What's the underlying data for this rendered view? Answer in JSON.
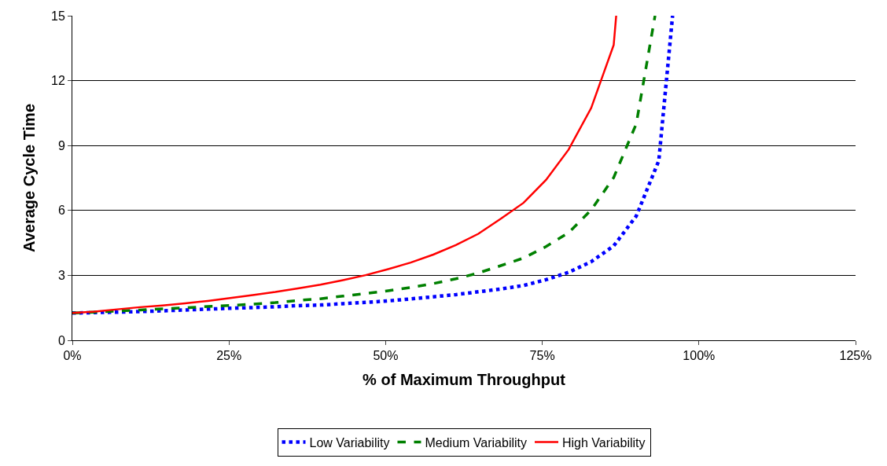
{
  "chart_data": {
    "type": "line",
    "xlabel": "% of Maximum Throughput",
    "ylabel": "Average Cycle Time",
    "xlim": [
      0,
      125
    ],
    "xticks": [
      {
        "value": 0,
        "label": "0%"
      },
      {
        "value": 25,
        "label": "25%"
      },
      {
        "value": 50,
        "label": "50%"
      },
      {
        "value": 75,
        "label": "75%"
      },
      {
        "value": 100,
        "label": "100%"
      },
      {
        "value": 125,
        "label": "125%"
      }
    ],
    "ylim": [
      0,
      15
    ],
    "yticks": [
      0,
      3,
      6,
      9,
      12,
      15
    ],
    "grid": "y",
    "legend": "bottom",
    "series": [
      {
        "name": "Low Variability",
        "color": "#0000ff",
        "line_style": "dotted",
        "x": [
          0,
          3.6,
          7.2,
          10.8,
          14.4,
          18,
          21.6,
          25.2,
          28.8,
          32.4,
          36,
          39.6,
          43.2,
          46.8,
          50.4,
          54,
          57.6,
          61.2,
          64.8,
          68.4,
          72,
          75.6,
          79.2,
          82.8,
          86.4,
          90,
          93.6,
          95.8
        ],
        "values": [
          1.26,
          1.28,
          1.3,
          1.33,
          1.36,
          1.4,
          1.44,
          1.48,
          1.51,
          1.55,
          1.6,
          1.63,
          1.69,
          1.75,
          1.82,
          1.91,
          2.01,
          2.11,
          2.24,
          2.37,
          2.53,
          2.8,
          3.14,
          3.63,
          4.36,
          5.74,
          8.3,
          15
        ]
      },
      {
        "name": "Medium Variability",
        "color": "#008000",
        "line_style": "dashed",
        "x": [
          0,
          3.6,
          7.2,
          10.8,
          14.4,
          18,
          21.6,
          25.2,
          28.8,
          32.4,
          36,
          39.6,
          43.2,
          46.8,
          50.4,
          54,
          57.6,
          61.2,
          64.8,
          68.4,
          72,
          75.6,
          79.2,
          82.8,
          86.4,
          90,
          93
        ],
        "values": [
          1.26,
          1.3,
          1.35,
          1.4,
          1.45,
          1.5,
          1.56,
          1.61,
          1.67,
          1.74,
          1.84,
          1.92,
          2.04,
          2.16,
          2.29,
          2.44,
          2.62,
          2.84,
          3.11,
          3.45,
          3.8,
          4.33,
          4.97,
          6.02,
          7.52,
          10,
          15
        ]
      },
      {
        "name": "High Variability",
        "color": "#ff0000",
        "line_style": "solid",
        "x": [
          0,
          3.6,
          7.2,
          10.8,
          14.4,
          18,
          21.6,
          25.2,
          28.8,
          32.4,
          36,
          39.6,
          43.2,
          46.8,
          50.4,
          54,
          57.6,
          61.2,
          64.8,
          68.4,
          72,
          75.6,
          79.2,
          82.8,
          86.4,
          86.8
        ],
        "values": [
          1.26,
          1.33,
          1.43,
          1.53,
          1.61,
          1.71,
          1.82,
          1.95,
          2.09,
          2.23,
          2.4,
          2.57,
          2.78,
          3.01,
          3.29,
          3.59,
          3.96,
          4.4,
          4.92,
          5.62,
          6.35,
          7.41,
          8.81,
          10.73,
          13.65,
          15
        ]
      }
    ]
  }
}
